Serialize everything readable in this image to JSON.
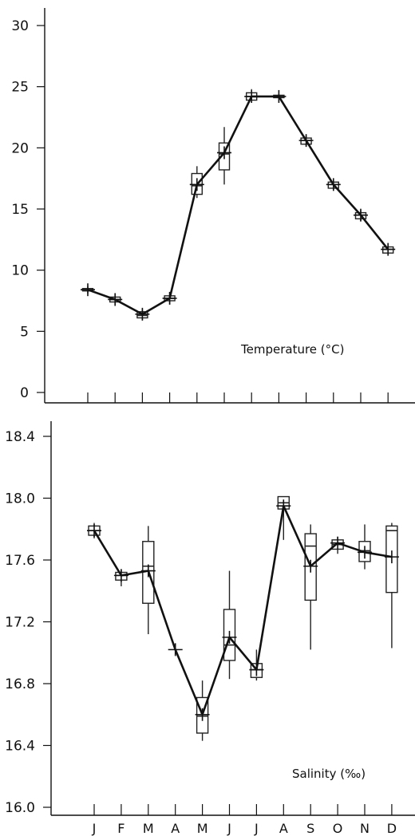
{
  "chart_data": [
    {
      "type": "box",
      "annotation": "Temperature (°C)",
      "categories": [
        "J",
        "F",
        "M",
        "A",
        "M",
        "J",
        "J",
        "A",
        "S",
        "O",
        "N",
        "D"
      ],
      "show_x_tick_labels": false,
      "yticks": [
        0,
        5,
        10,
        15,
        20,
        25,
        30
      ],
      "ylim": [
        0,
        30
      ],
      "mean_line": [
        8.4,
        7.6,
        6.4,
        7.7,
        17.0,
        19.6,
        24.2,
        24.2,
        20.6,
        17.0,
        14.5,
        11.7
      ],
      "boxes": [
        {
          "q1": 8.3,
          "q3": 8.5,
          "median": 8.4,
          "whisker_low": 8.1,
          "whisker_high": 8.7
        },
        {
          "q1": 7.4,
          "q3": 7.8,
          "median": 7.6,
          "whisker_low": 7.1,
          "whisker_high": 8.1
        },
        {
          "q1": 6.1,
          "q3": 6.6,
          "median": 6.3,
          "whisker_low": 5.9,
          "whisker_high": 6.8
        },
        {
          "q1": 7.5,
          "q3": 7.9,
          "median": 7.7,
          "whisker_low": 7.2,
          "whisker_high": 8.2
        },
        {
          "q1": 16.2,
          "q3": 17.9,
          "median": 16.9,
          "whisker_low": 15.9,
          "whisker_high": 18.5
        },
        {
          "q1": 18.2,
          "q3": 20.4,
          "median": 19.5,
          "whisker_low": 17.0,
          "whisker_high": 21.7
        },
        {
          "q1": 23.9,
          "q3": 24.5,
          "median": 24.2,
          "whisker_low": 23.7,
          "whisker_high": 24.8
        },
        {
          "q1": 24.1,
          "q3": 24.3,
          "median": 24.2,
          "whisker_low": 24.0,
          "whisker_high": 24.4
        },
        {
          "q1": 20.3,
          "q3": 20.8,
          "median": 20.6,
          "whisker_low": 20.1,
          "whisker_high": 21.0
        },
        {
          "q1": 16.7,
          "q3": 17.2,
          "median": 17.0,
          "whisker_low": 16.5,
          "whisker_high": 17.4
        },
        {
          "q1": 14.2,
          "q3": 14.7,
          "median": 14.5,
          "whisker_low": 14.0,
          "whisker_high": 14.9
        },
        {
          "q1": 11.4,
          "q3": 11.9,
          "median": 11.7,
          "whisker_low": 11.2,
          "whisker_high": 12.1
        }
      ]
    },
    {
      "type": "box",
      "annotation": "Salinity (‰)",
      "categories": [
        "J",
        "F",
        "M",
        "A",
        "M",
        "J",
        "J",
        "A",
        "S",
        "O",
        "N",
        "D"
      ],
      "show_x_tick_labels": true,
      "yticks": [
        "16.0",
        "16.4",
        "16.8",
        "17.2",
        "17.6",
        "18.0",
        "18.4"
      ],
      "ylim": [
        16.0,
        18.4
      ],
      "mean_line": [
        17.79,
        17.5,
        17.53,
        17.02,
        16.6,
        17.1,
        16.89,
        17.95,
        17.56,
        17.71,
        17.65,
        17.62
      ],
      "boxes": [
        {
          "q1": 17.76,
          "q3": 17.82,
          "median": 17.79,
          "whisker_low": 17.74,
          "whisker_high": 17.84
        },
        {
          "q1": 17.47,
          "q3": 17.52,
          "median": 17.5,
          "whisker_low": 17.43,
          "whisker_high": 17.54
        },
        {
          "q1": 17.32,
          "q3": 17.72,
          "median": 17.56,
          "whisker_low": 17.12,
          "whisker_high": 17.82
        },
        null,
        {
          "q1": 16.48,
          "q3": 16.71,
          "median": 16.59,
          "whisker_low": 16.43,
          "whisker_high": 16.82
        },
        {
          "q1": 16.95,
          "q3": 17.28,
          "median": 17.05,
          "whisker_low": 16.83,
          "whisker_high": 17.53
        },
        {
          "q1": 16.84,
          "q3": 16.93,
          "median": 16.89,
          "whisker_low": 16.82,
          "whisker_high": 17.02
        },
        {
          "q1": 17.93,
          "q3": 18.01,
          "median": 17.97,
          "whisker_low": 17.73,
          "whisker_high": 18.01
        },
        {
          "q1": 17.34,
          "q3": 17.77,
          "median": 17.69,
          "whisker_low": 17.02,
          "whisker_high": 17.83
        },
        {
          "q1": 17.67,
          "q3": 17.73,
          "median": 17.7,
          "whisker_low": 17.64,
          "whisker_high": 17.75
        },
        {
          "q1": 17.59,
          "q3": 17.72,
          "median": 17.66,
          "whisker_low": 17.54,
          "whisker_high": 17.83
        },
        {
          "q1": 17.39,
          "q3": 17.82,
          "median": 17.79,
          "whisker_low": 17.03,
          "whisker_high": 17.84
        }
      ]
    }
  ]
}
